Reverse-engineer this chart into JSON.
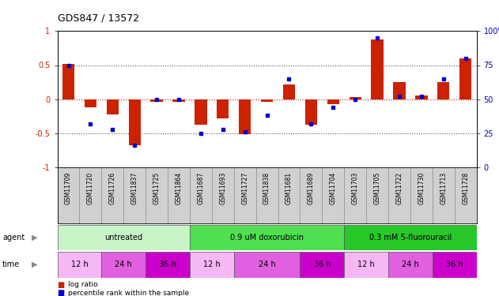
{
  "title": "GDS847 / 13572",
  "samples": [
    "GSM11709",
    "GSM11720",
    "GSM11726",
    "GSM11837",
    "GSM11725",
    "GSM11864",
    "GSM11687",
    "GSM11693",
    "GSM11727",
    "GSM11838",
    "GSM11681",
    "GSM11689",
    "GSM11704",
    "GSM11703",
    "GSM11705",
    "GSM11722",
    "GSM11730",
    "GSM11713",
    "GSM11728"
  ],
  "log_ratio": [
    0.52,
    -0.12,
    -0.22,
    -0.68,
    -0.04,
    -0.04,
    -0.38,
    -0.28,
    -0.52,
    -0.04,
    0.22,
    -0.38,
    -0.07,
    0.03,
    0.88,
    0.25,
    0.05,
    0.25,
    0.6
  ],
  "percentile": [
    75,
    32,
    28,
    16,
    50,
    50,
    25,
    28,
    26,
    38,
    65,
    32,
    44,
    50,
    95,
    52,
    52,
    65,
    80
  ],
  "agent_groups": [
    {
      "label": "untreated",
      "start": 0,
      "end": 6,
      "color": "#c8f5c8"
    },
    {
      "label": "0.9 uM doxorubicin",
      "start": 6,
      "end": 13,
      "color": "#50e050"
    },
    {
      "label": "0.3 mM 5-fluorouracil",
      "start": 13,
      "end": 19,
      "color": "#28c828"
    }
  ],
  "time_groups": [
    {
      "label": "12 h",
      "start": 0,
      "end": 2,
      "color": "#f5b8f5"
    },
    {
      "label": "24 h",
      "start": 2,
      "end": 4,
      "color": "#e060e0"
    },
    {
      "label": "36 h",
      "start": 4,
      "end": 6,
      "color": "#cc00cc"
    },
    {
      "label": "12 h",
      "start": 6,
      "end": 8,
      "color": "#f5b8f5"
    },
    {
      "label": "24 h",
      "start": 8,
      "end": 11,
      "color": "#e060e0"
    },
    {
      "label": "36 h",
      "start": 11,
      "end": 13,
      "color": "#cc00cc"
    },
    {
      "label": "12 h",
      "start": 13,
      "end": 15,
      "color": "#f5b8f5"
    },
    {
      "label": "24 h",
      "start": 15,
      "end": 17,
      "color": "#e060e0"
    },
    {
      "label": "36 h",
      "start": 17,
      "end": 19,
      "color": "#cc00cc"
    }
  ],
  "ylim": [
    -1,
    1
  ],
  "yticks_left": [
    -1,
    -0.5,
    0,
    0.5,
    1
  ],
  "yticks_right": [
    0,
    25,
    50,
    75,
    100
  ],
  "bar_color_red": "#cc2200",
  "bar_color_blue": "#0000cc",
  "dotted_line_color": "#555555",
  "zero_line_color": "#cc2200",
  "bg_color": "#ffffff",
  "sample_bg": "#d0d0d0"
}
